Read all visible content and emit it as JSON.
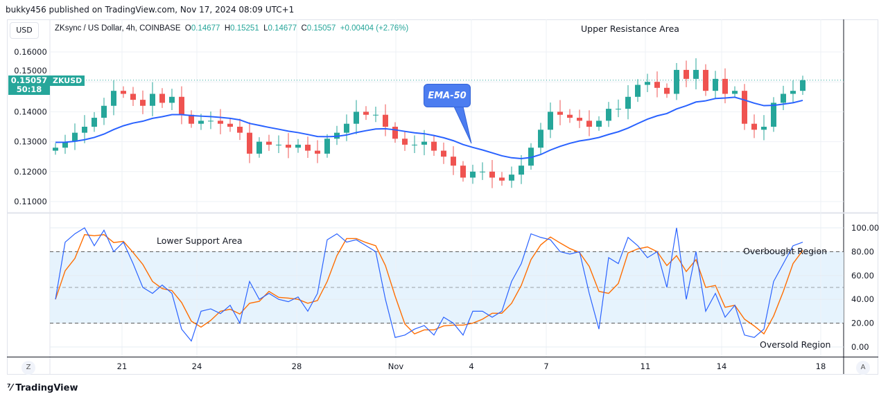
{
  "header": {
    "published": "bukky456 published on TradingView.com, Nov 17, 2024 08:09 UTC+1"
  },
  "currency_button": "USD",
  "legend": {
    "symbol": "ZKsync / US Dollar, 4h, COINBASE",
    "o_label": "O",
    "o": "0.14677",
    "h_label": "H",
    "h": "0.15251",
    "l_label": "L",
    "l": "0.14677",
    "c_label": "C",
    "c": "0.15057",
    "change": "+0.00404 (+2.76%)"
  },
  "price_tag": {
    "price": "0.15057",
    "countdown": "50:18",
    "symbol": "ZKUSD"
  },
  "annotations": {
    "upper": "Upper Resistance Area",
    "ema": "EMA-50",
    "lower": "Lower Support Area",
    "overbought": "Overbought Region",
    "oversold": "Oversold Region"
  },
  "buttons": {
    "z": "Z",
    "a": "A"
  },
  "logo": "TradingView",
  "colors": {
    "up": "#26a69a",
    "down": "#ef5350",
    "ema": "#2962ff",
    "k": "#2962ff",
    "d": "#ff6d00",
    "band": "#e3f2fd"
  },
  "chart_data": [
    {
      "type": "candlestick",
      "title": "ZKsync / US Dollar, 4h, COINBASE",
      "ylim": [
        0.105,
        0.166
      ],
      "y_ticks": [
        "0.16000",
        "0.15000",
        "0.14000",
        "0.13000",
        "0.12000",
        "0.11000"
      ],
      "x_ticks": [
        "21",
        "24",
        "28",
        "Nov",
        "4",
        "7",
        "11",
        "14",
        "18"
      ],
      "first_open": 0.127,
      "closes": [
        0.128,
        0.13,
        0.133,
        0.135,
        0.138,
        0.142,
        0.147,
        0.146,
        0.144,
        0.142,
        0.146,
        0.143,
        0.145,
        0.139,
        0.136,
        0.137,
        0.137,
        0.136,
        0.135,
        0.133,
        0.126,
        0.13,
        0.129,
        0.129,
        0.128,
        0.129,
        0.127,
        0.126,
        0.131,
        0.133,
        0.136,
        0.14,
        0.139,
        0.139,
        0.135,
        0.131,
        0.129,
        0.129,
        0.13,
        0.127,
        0.125,
        0.122,
        0.118,
        0.12,
        0.12,
        0.118,
        0.117,
        0.119,
        0.122,
        0.128,
        0.134,
        0.14,
        0.139,
        0.138,
        0.137,
        0.135,
        0.137,
        0.141,
        0.141,
        0.145,
        0.149,
        0.15,
        0.148,
        0.146,
        0.154,
        0.151,
        0.154,
        0.147,
        0.151,
        0.146,
        0.147,
        0.136,
        0.134,
        0.135,
        0.143,
        0.146,
        0.147,
        0.15057
      ],
      "ema_series": "EMA-50",
      "last_price": 0.15057
    },
    {
      "type": "line",
      "indicator": "stochastic",
      "ylim": [
        0,
        100
      ],
      "y_ticks": [
        "100.00",
        "80.00",
        "60.00",
        "40.00",
        "20.00",
        "0.00"
      ],
      "levels": [
        80,
        50,
        20
      ],
      "k": [
        40,
        88,
        95,
        100,
        85,
        98,
        80,
        88,
        70,
        50,
        45,
        52,
        45,
        15,
        5,
        30,
        32,
        28,
        35,
        20,
        55,
        40,
        45,
        40,
        38,
        42,
        30,
        45,
        90,
        95,
        88,
        90,
        85,
        80,
        40,
        8,
        10,
        15,
        18,
        10,
        25,
        20,
        10,
        30,
        30,
        25,
        30,
        55,
        70,
        95,
        92,
        90,
        80,
        78,
        80,
        45,
        15,
        75,
        70,
        92,
        85,
        75,
        80,
        50,
        100,
        40,
        80,
        30,
        45,
        25,
        35,
        10,
        8,
        15,
        55,
        70,
        85,
        88
      ]
    }
  ]
}
